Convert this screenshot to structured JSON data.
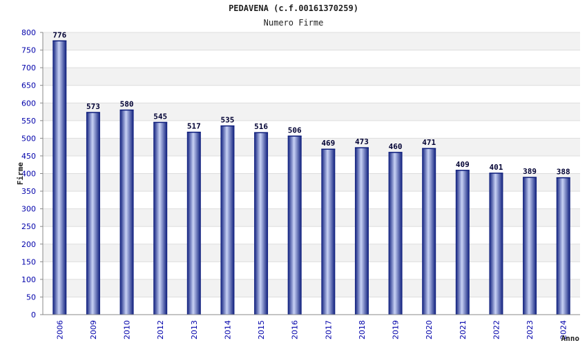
{
  "chart_data": {
    "type": "bar",
    "title": "PEDAVENA (c.f.00161370259)",
    "subtitle": "Numero Firme",
    "xlabel": "Anno",
    "ylabel": "Firme",
    "ylim": [
      0,
      800
    ],
    "ytick_step": 50,
    "grid": true,
    "categories": [
      "2006",
      "2009",
      "2010",
      "2012",
      "2013",
      "2014",
      "2015",
      "2016",
      "2017",
      "2018",
      "2019",
      "2020",
      "2021",
      "2022",
      "2023",
      "2024"
    ],
    "values": [
      776,
      573,
      580,
      545,
      517,
      535,
      516,
      506,
      469,
      473,
      460,
      471,
      409,
      401,
      389,
      388
    ],
    "colors": {
      "bar_dark": "#0a1a7a",
      "bar_light": "#c8d2f5",
      "band": "#f2f2f2",
      "grid": "#dddddd",
      "axis": "#888888",
      "tick_text": "#0000aa"
    }
  }
}
